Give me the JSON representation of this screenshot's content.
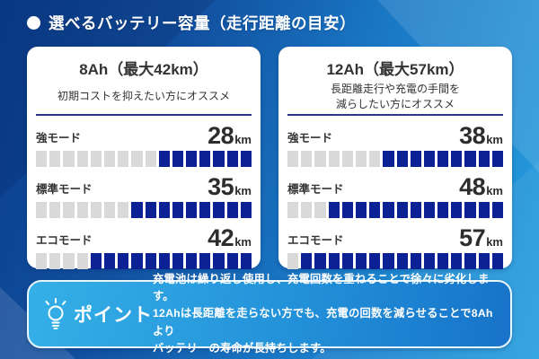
{
  "header": {
    "title": "選べるバッテリー容量（走行距離の目安）",
    "bullet_icon": "circle-icon"
  },
  "cards": [
    {
      "title": "8Ah（最大42km）",
      "subtitle": "初期コストを抑えたい方にオススメ",
      "subtitle2": "",
      "modes": [
        {
          "label": "強モード",
          "value": "28",
          "unit": "km",
          "filled": 7,
          "total": 16
        },
        {
          "label": "標準モード",
          "value": "35",
          "unit": "km",
          "filled": 9,
          "total": 16
        },
        {
          "label": "エコモード",
          "value": "42",
          "unit": "km",
          "filled": 12,
          "total": 16
        }
      ]
    },
    {
      "title": "12Ah（最大57km）",
      "subtitle": "長距離走行や充電の手間を",
      "subtitle2": "減らしたい方にオススメ",
      "modes": [
        {
          "label": "強モード",
          "value": "38",
          "unit": "km",
          "filled": 9,
          "total": 16
        },
        {
          "label": "標準モード",
          "value": "48",
          "unit": "km",
          "filled": 13,
          "total": 16
        },
        {
          "label": "エコモード",
          "value": "57",
          "unit": "km",
          "filled": 15,
          "total": 16
        }
      ]
    }
  ],
  "footer": {
    "icon": "lightbulb-icon",
    "label": "ポイント",
    "lines": [
      "充電池は繰り返し使用し、充電回数を重ねることで徐々に劣化します。",
      "12Ahは長距離を走らない方でも、充電の回数を減らせることで8Ahより",
      "バッテリーの寿命が長持ちします。"
    ]
  },
  "colors": {
    "background_navy": "#0b3e8e",
    "background_azure": "#27a0e0",
    "card_bg": "#ffffff",
    "divider_navy": "#2b3990",
    "bar_filled": "#0c2194",
    "bar_empty": "#d9d9d9",
    "text_dark": "#333333",
    "text_white": "#ffffff",
    "footer_gradient_start": "#35b0e7",
    "footer_gradient_end": "#1773c9"
  },
  "chart_data": [
    {
      "type": "bar",
      "title": "8Ah（最大42km）",
      "subtitle": "初期コストを抑えたい方にオススメ",
      "categories": [
        "強モード",
        "標準モード",
        "エコモード"
      ],
      "values": [
        28,
        35,
        42
      ],
      "unit": "km",
      "segments_total": 16,
      "segments_filled": [
        7,
        9,
        12
      ],
      "xlabel": "",
      "ylabel": "走行距離",
      "max_value": 42
    },
    {
      "type": "bar",
      "title": "12Ah（最大57km）",
      "subtitle": "長距離走行や充電の手間を減らしたい方にオススメ",
      "categories": [
        "強モード",
        "標準モード",
        "エコモード"
      ],
      "values": [
        38,
        48,
        57
      ],
      "unit": "km",
      "segments_total": 16,
      "segments_filled": [
        9,
        13,
        15
      ],
      "xlabel": "",
      "ylabel": "走行距離",
      "max_value": 57
    }
  ]
}
